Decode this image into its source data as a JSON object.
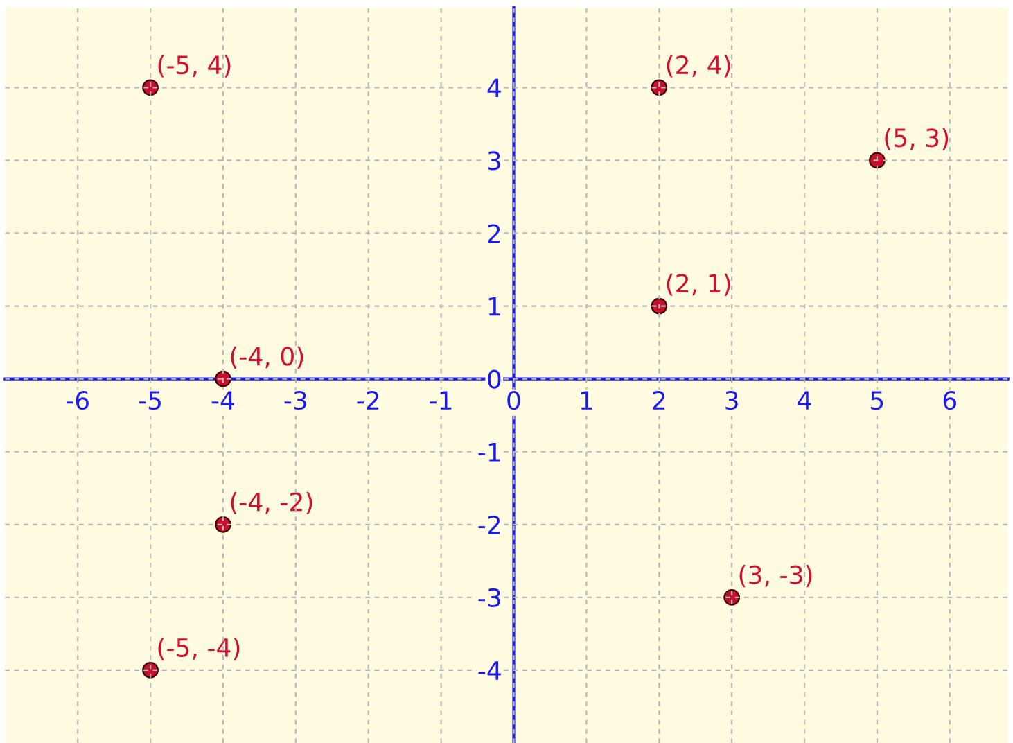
{
  "chart_data": {
    "type": "scatter",
    "series": [
      {
        "color": "#c8102e",
        "x": [
          -5,
          2,
          5,
          2,
          -4,
          -4,
          3,
          -5
        ],
        "values": [
          4,
          4,
          3,
          1,
          0,
          -2,
          -3,
          -4
        ]
      }
    ],
    "annotations": [
      {
        "text": "(-5, 4)",
        "x": -5,
        "y": 4
      },
      {
        "text": "(2, 4)",
        "x": 2,
        "y": 4
      },
      {
        "text": "(5, 3)",
        "x": 5,
        "y": 3
      },
      {
        "text": "(2, 1)",
        "x": 2,
        "y": 1
      },
      {
        "text": "(-4, 0)",
        "x": -4,
        "y": 0
      },
      {
        "text": "(-4, -2)",
        "x": -4,
        "y": -2
      },
      {
        "text": "(3, -3)",
        "x": 3,
        "y": -3
      },
      {
        "text": "(-5, -4)",
        "x": -5,
        "y": -4
      }
    ],
    "xlim": [
      -7,
      6.8
    ],
    "ylim": [
      -5,
      5.1
    ],
    "xticks": [
      -6,
      -5,
      -4,
      -3,
      -2,
      -1,
      0,
      1,
      2,
      3,
      4,
      5,
      6
    ],
    "yticks": [
      -4,
      -3,
      -2,
      -1,
      0,
      1,
      2,
      3,
      4
    ],
    "grid": true,
    "marker": "circle"
  }
}
